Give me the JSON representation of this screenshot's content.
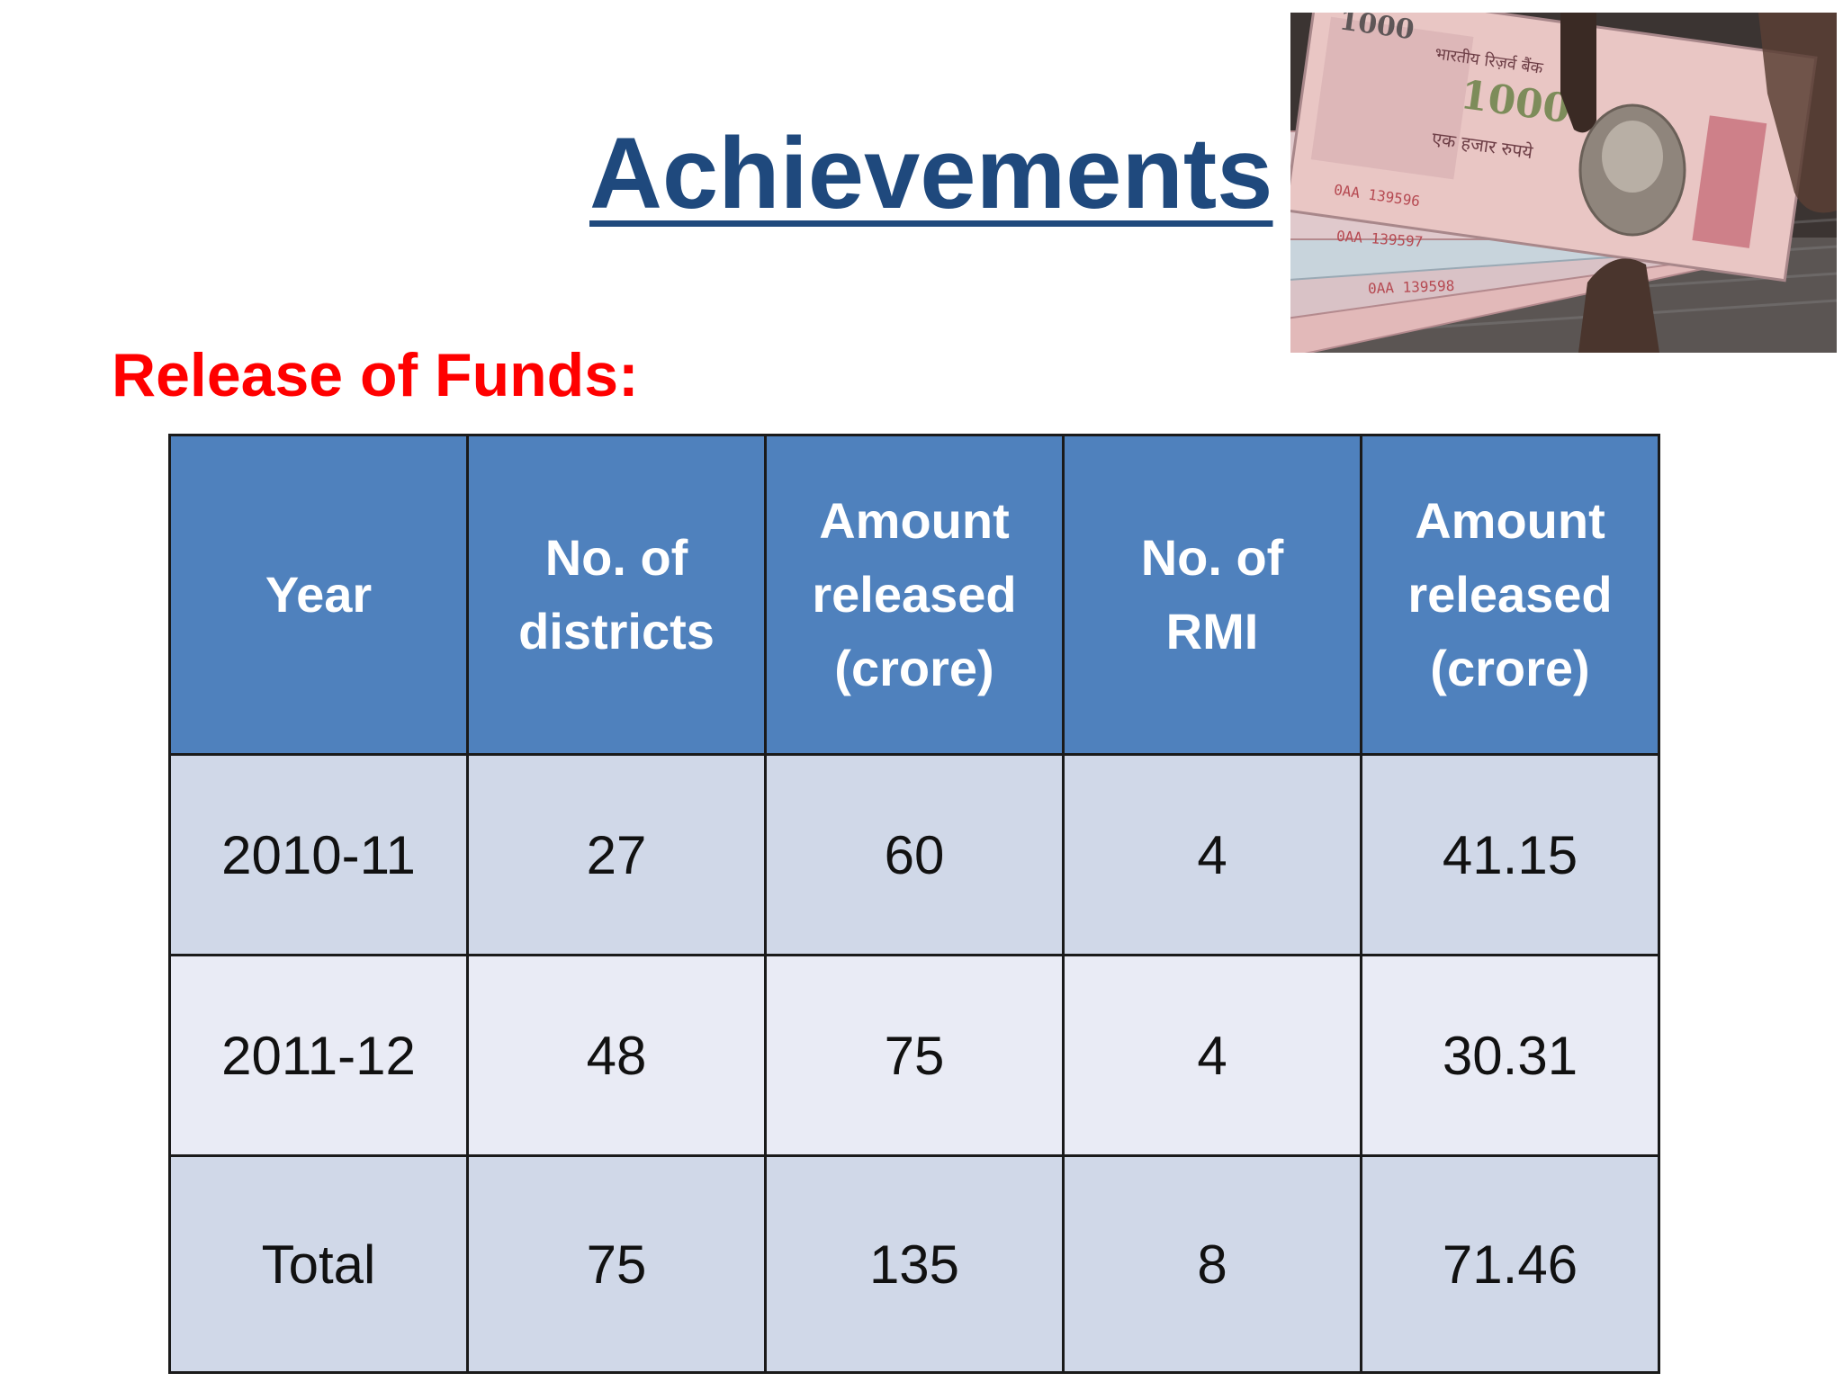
{
  "slide": {
    "title": "Achievements",
    "subtitle": "Release of Funds:"
  },
  "photo": {
    "icon": "currency-notes-image",
    "note_text": {
      "denomination": "1000",
      "hindi_denomination": "एक हजार रुपये",
      "bank": "भारतीय रिज़र्व बैंक",
      "serials": [
        "0AA 139596",
        "0AA 139597",
        "0AA 139598"
      ]
    }
  },
  "table": {
    "headers": [
      [
        "Year"
      ],
      [
        "No. of",
        "districts"
      ],
      [
        "Amount",
        "released",
        "(crore)"
      ],
      [
        "No. of",
        "RMI"
      ],
      [
        "Amount",
        "released",
        "(crore)"
      ]
    ],
    "rows": [
      [
        "2010-11",
        "27",
        "60",
        "4",
        "41.15"
      ],
      [
        "2011-12",
        "48",
        "75",
        "4",
        "30.31"
      ],
      [
        "Total",
        "75",
        "135",
        "8",
        "71.46"
      ]
    ]
  },
  "colors": {
    "title": "#1f497d",
    "subtitle": "#ff0000",
    "header_bg": "#4f81bd",
    "row_odd": "#d0d8e8",
    "row_even": "#e9ebf5"
  }
}
